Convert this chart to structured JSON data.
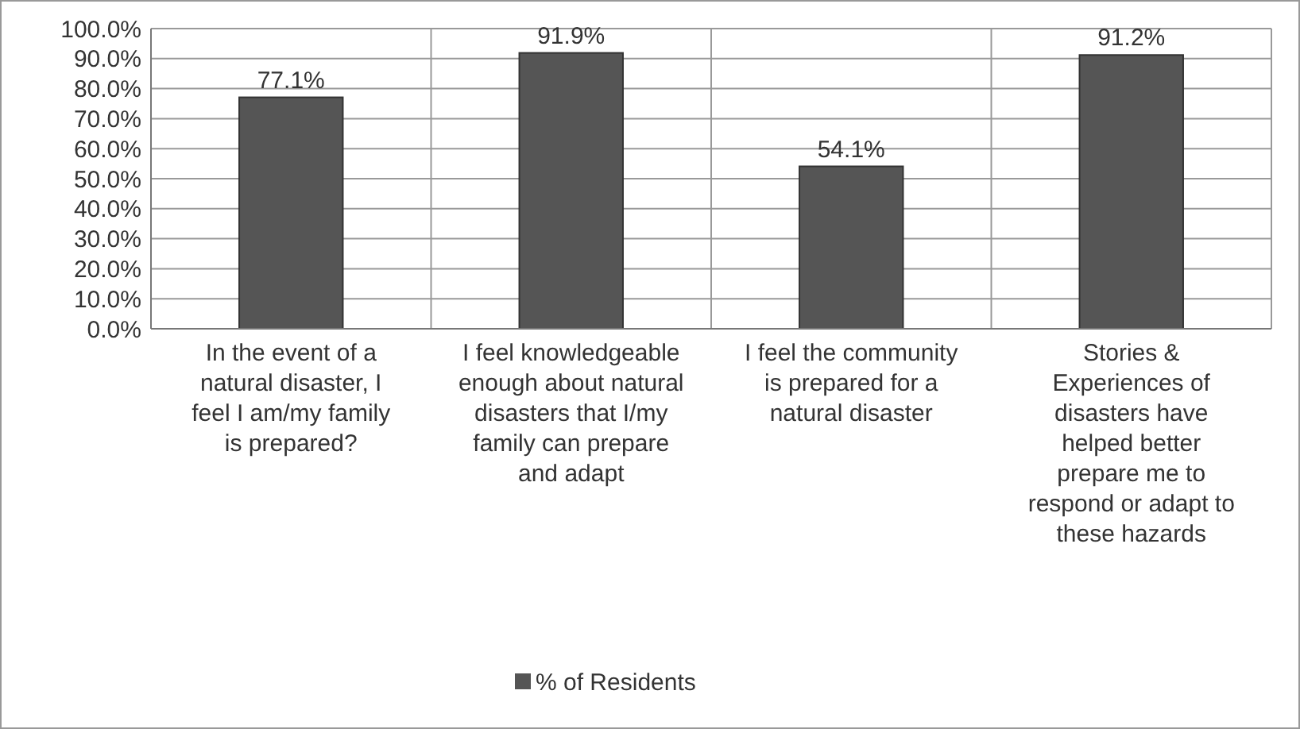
{
  "chart_data": {
    "type": "bar",
    "categories": [
      "In the event of a natural disaster, I feel I am/my family is prepared?",
      "I feel knowledgeable enough about natural disasters that I/my family can prepare and adapt",
      "I feel the community is prepared for a natural disaster",
      "Stories & Experiences of disasters have helped better prepare me to respond or adapt to these hazards"
    ],
    "series": [
      {
        "name": "% of Residents",
        "color": "#555555",
        "values": [
          77.1,
          91.9,
          54.1,
          91.2
        ]
      }
    ],
    "value_labels": [
      "77.1%",
      "91.9%",
      "54.1%",
      "91.2%"
    ],
    "ylim": [
      0,
      100
    ],
    "yticks": [
      {
        "value": 0,
        "label": "0.0%"
      },
      {
        "value": 10,
        "label": "10.0%"
      },
      {
        "value": 20,
        "label": "20.0%"
      },
      {
        "value": 30,
        "label": "30.0%"
      },
      {
        "value": 40,
        "label": "40.0%"
      },
      {
        "value": 50,
        "label": "50.0%"
      },
      {
        "value": 60,
        "label": "60.0%"
      },
      {
        "value": 70,
        "label": "70.0%"
      },
      {
        "value": 80,
        "label": "80.0%"
      },
      {
        "value": 90,
        "label": "90.0%"
      },
      {
        "value": 100,
        "label": "100.0%"
      }
    ],
    "grid": true,
    "legend": "bottom"
  }
}
